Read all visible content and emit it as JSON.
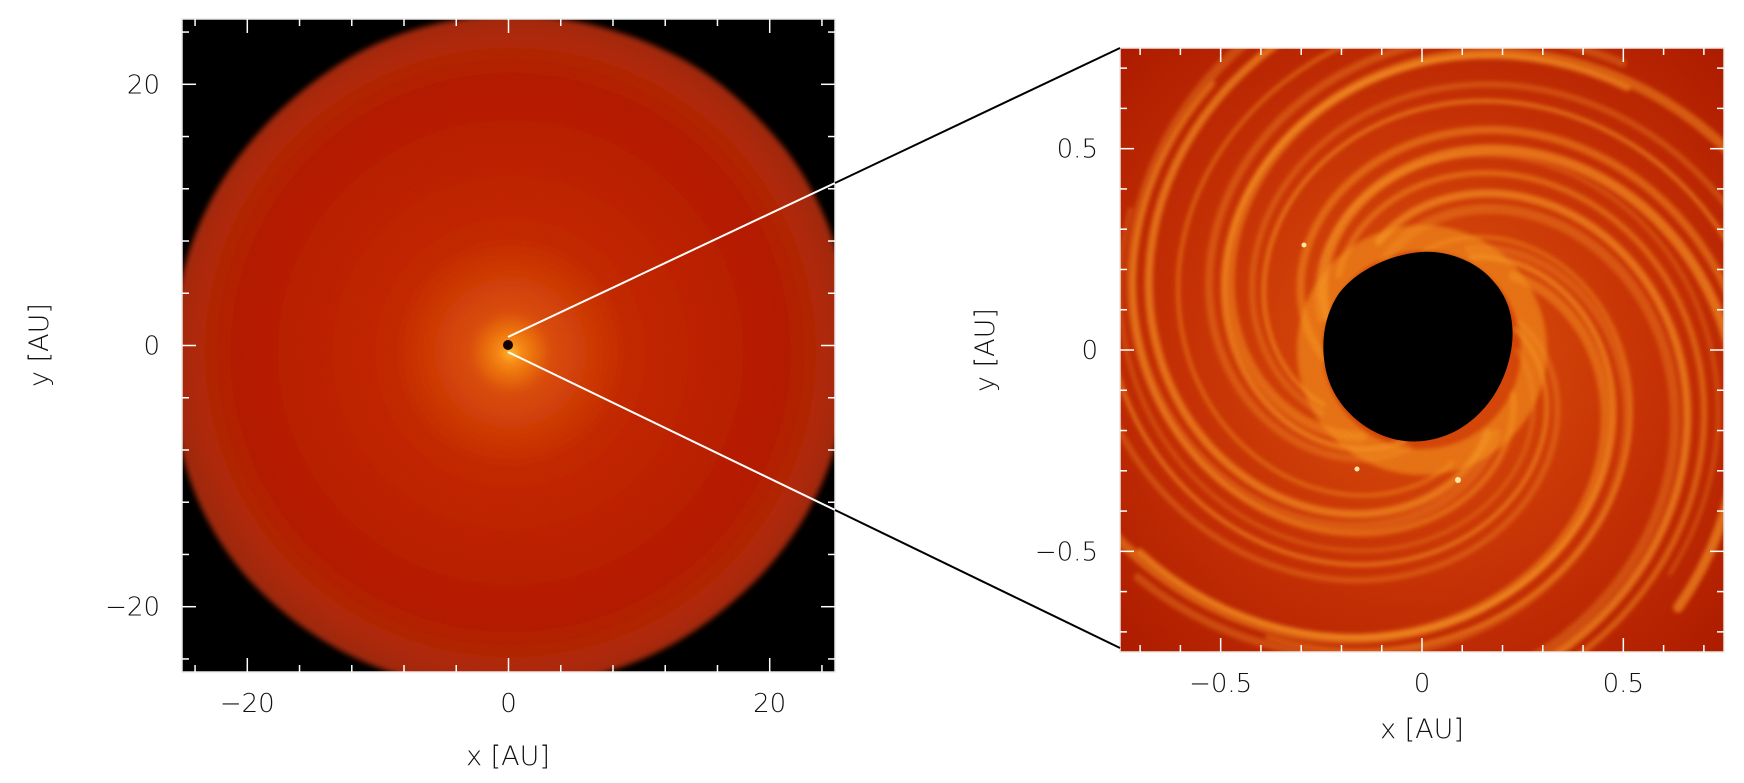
{
  "panels": [
    {
      "id": "left",
      "xlabel": "x [AU]",
      "ylabel": "y [AU]",
      "xlim": [
        -25,
        25
      ],
      "ylim": [
        -25,
        25
      ],
      "xticks": [
        -20,
        0,
        20
      ],
      "yticks": [
        -20,
        0,
        20
      ],
      "xtick_labels": [
        "−20",
        "0",
        "20"
      ],
      "ytick_labels": [
        "−20",
        "0",
        "20"
      ]
    },
    {
      "id": "right",
      "xlabel": "x [AU]",
      "ylabel": "y [AU]",
      "xlim": [
        -0.75,
        0.75
      ],
      "ylim": [
        -0.75,
        0.75
      ],
      "xticks": [
        -0.5,
        0,
        0.5
      ],
      "yticks": [
        -0.5,
        0,
        0.5
      ],
      "xtick_labels": [
        "−0.5",
        "0",
        "0.5"
      ],
      "ytick_labels": [
        "−0.5",
        "0",
        "0.5"
      ]
    }
  ],
  "colors": {
    "background": "#000000",
    "disk_outer": "#b51a00",
    "disk_mid": "#cc3a06",
    "disk_center": "#ffa21a",
    "spiral_arm": "#ff9a24",
    "zoom_line_outside": "#000000",
    "zoom_line_inside": "#ffffff"
  }
}
